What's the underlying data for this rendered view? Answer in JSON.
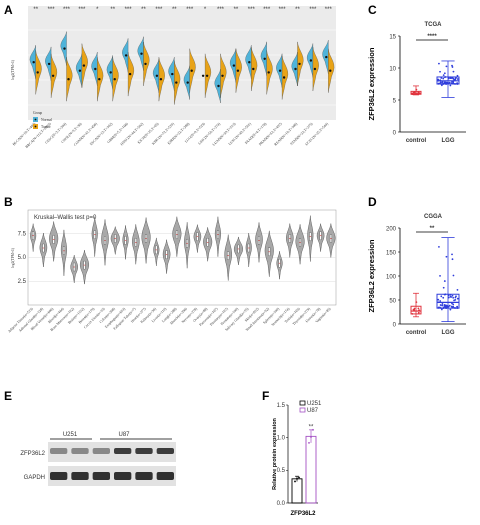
{
  "panels": {
    "A": {
      "label": "A"
    },
    "B": {
      "label": "B"
    },
    "C": {
      "label": "C"
    },
    "D": {
      "label": "D"
    },
    "E": {
      "label": "E"
    },
    "F": {
      "label": "F"
    }
  },
  "colors": {
    "normal": "#4fb3d9",
    "tumor": "#e8a317",
    "control": "#e0323c",
    "lgg": "#2f3ddb",
    "u251": "#000000",
    "u87": "#a451c4",
    "violin": "#a8a8a8"
  },
  "chart_data": [
    {
      "id": "A",
      "type": "violin",
      "ylabel": "log2(TPM+1)",
      "legend_title": "Group",
      "legend_items": [
        "Normal",
        "Tumor"
      ],
      "significance": [
        "**",
        "***",
        "***",
        "***",
        "*",
        "**",
        "***",
        "**",
        "***",
        "**",
        "***",
        "*",
        "***",
        "**",
        "***",
        "***",
        "***",
        "**",
        "***",
        "***"
      ],
      "categories": [
        "BLCA(N=19,T=407)",
        "BRCA(N=113,T=1093)",
        "CESC(N=3,T=304)",
        "CHOL(N=9,T=36)",
        "COAD(N=41,T=456)",
        "ESCA(N=13,T=162)",
        "GBM(N=5,T=166)",
        "HNSC(N=44,T=502)",
        "KICH(N=25,T=65)",
        "KIRC(N=72,T=535)",
        "KIRP(N=32,T=288)",
        "LGG(N=0,T=529)",
        "LIHC(N=50,T=374)",
        "LUAD(N=59,T=513)",
        "LUSC(N=49,T=501)",
        "PAAD(N=4,T=178)",
        "PRAD(N=52,T=497)",
        "READ(N=10,T=166)",
        "STAD(N=32,T=375)",
        "UCEC(N=35,T=544)"
      ],
      "normal_median": [
        5.4,
        5.3,
        6.2,
        4.9,
        5.0,
        4.8,
        5.8,
        5.9,
        4.6,
        4.7,
        4.2,
        null,
        4.0,
        5.2,
        5.4,
        5.6,
        4.9,
        5.0,
        5.5,
        5.7
      ],
      "tumor_median": [
        4.8,
        4.6,
        4.4,
        5.2,
        4.4,
        4.4,
        4.7,
        5.3,
        4.4,
        4.2,
        4.9,
        4.6,
        4.6,
        4.9,
        5.0,
        4.8,
        4.5,
        5.3,
        5.0,
        4.9
      ]
    },
    {
      "id": "B",
      "type": "violin",
      "title": "Kruskal–Wallis test p=0",
      "ylabel": "log2(TPM+1)",
      "yticks": [
        "2.5",
        "5.0",
        "7.5"
      ],
      "ylim": [
        0,
        10
      ],
      "categories": [
        "Adipose Tissue(n=515)",
        "Adrenal Gland(n=128)",
        "Blood Vessel(n=606)",
        "Blood(n=444)",
        "Bone Marrow(n=102)",
        "Brain(n=1152)",
        "Breast(n=179)",
        "Cervix Uteri(n=10)",
        "Colon(n=308)",
        "Esophagus(n=653)",
        "Fallopian Tube(n=7)",
        "Heart(n=377)",
        "Kidney(n=36)",
        "Liver(n=110)",
        "Lung(n=288)",
        "Muscle(n=396)",
        "Nerve(n=278)",
        "Ovary(n=88)",
        "Pancreas(n=167)",
        "Pituitary(n=107)",
        "Prostate(n=100)",
        "Salivary Gland(n=55)",
        "Skin(n=812)",
        "Small Intestine(n=92)",
        "Spleen(n=100)",
        "Stomach(n=174)",
        "Testis(n=165)",
        "Thyroid(n=279)",
        "Uterus(n=78)",
        "Vagina(n=85)"
      ],
      "medians": [
        7.3,
        6.0,
        6.9,
        5.7,
        4.0,
        4.2,
        7.4,
        6.8,
        7.0,
        6.8,
        6.6,
        7.0,
        5.8,
        5.3,
        7.4,
        6.5,
        7.2,
        6.6,
        7.4,
        5.2,
        5.9,
        6.0,
        6.8,
        5.6,
        4.4,
        7.0,
        6.6,
        7.2,
        7.3,
        7.0
      ]
    },
    {
      "id": "C",
      "type": "boxplot",
      "title": "TCGA",
      "ylabel": "ZFP36L2 expression",
      "categories": [
        "control",
        "LGG"
      ],
      "yticks": [
        "0",
        "5",
        "10",
        "15"
      ],
      "ylim": [
        0,
        15
      ],
      "significance": "****",
      "boxes": [
        {
          "name": "control",
          "min": 5.8,
          "q1": 5.9,
          "median": 6.05,
          "q3": 6.35,
          "max": 7.2
        },
        {
          "name": "LGG",
          "min": 5.4,
          "q1": 7.5,
          "median": 8.0,
          "q3": 8.6,
          "max": 11.1
        }
      ]
    },
    {
      "id": "D",
      "type": "boxplot",
      "title": "CGGA",
      "ylabel": "ZFP36L2 expression",
      "categories": [
        "control",
        "LGG"
      ],
      "yticks": [
        "0",
        "50",
        "100",
        "150",
        "200"
      ],
      "ylim": [
        0,
        200
      ],
      "significance": "**",
      "boxes": [
        {
          "name": "control",
          "min": 15,
          "q1": 21,
          "median": 27,
          "q3": 37,
          "max": 64
        },
        {
          "name": "LGG",
          "min": 5,
          "q1": 33,
          "median": 45,
          "q3": 62,
          "max": 180
        }
      ]
    },
    {
      "id": "E",
      "type": "western_blot",
      "groups": [
        "U251",
        "U87"
      ],
      "rows": [
        "ZFP36L2",
        "GAPDH"
      ]
    },
    {
      "id": "F",
      "type": "bar",
      "ylabel": "Relative protein expression",
      "xlabel": "ZFP36L2",
      "yticks": [
        "0.0",
        "0.5",
        "1.0",
        "1.5"
      ],
      "ylim": [
        0,
        1.5
      ],
      "legend": [
        "U251",
        "U87"
      ],
      "significance": "**",
      "series": [
        {
          "name": "U251",
          "value": 0.37,
          "error": 0.04,
          "points": [
            0.33,
            0.37,
            0.39
          ]
        },
        {
          "name": "U87",
          "value": 1.02,
          "error": 0.1,
          "points": [
            0.92,
            1.01,
            1.12
          ]
        }
      ]
    }
  ]
}
